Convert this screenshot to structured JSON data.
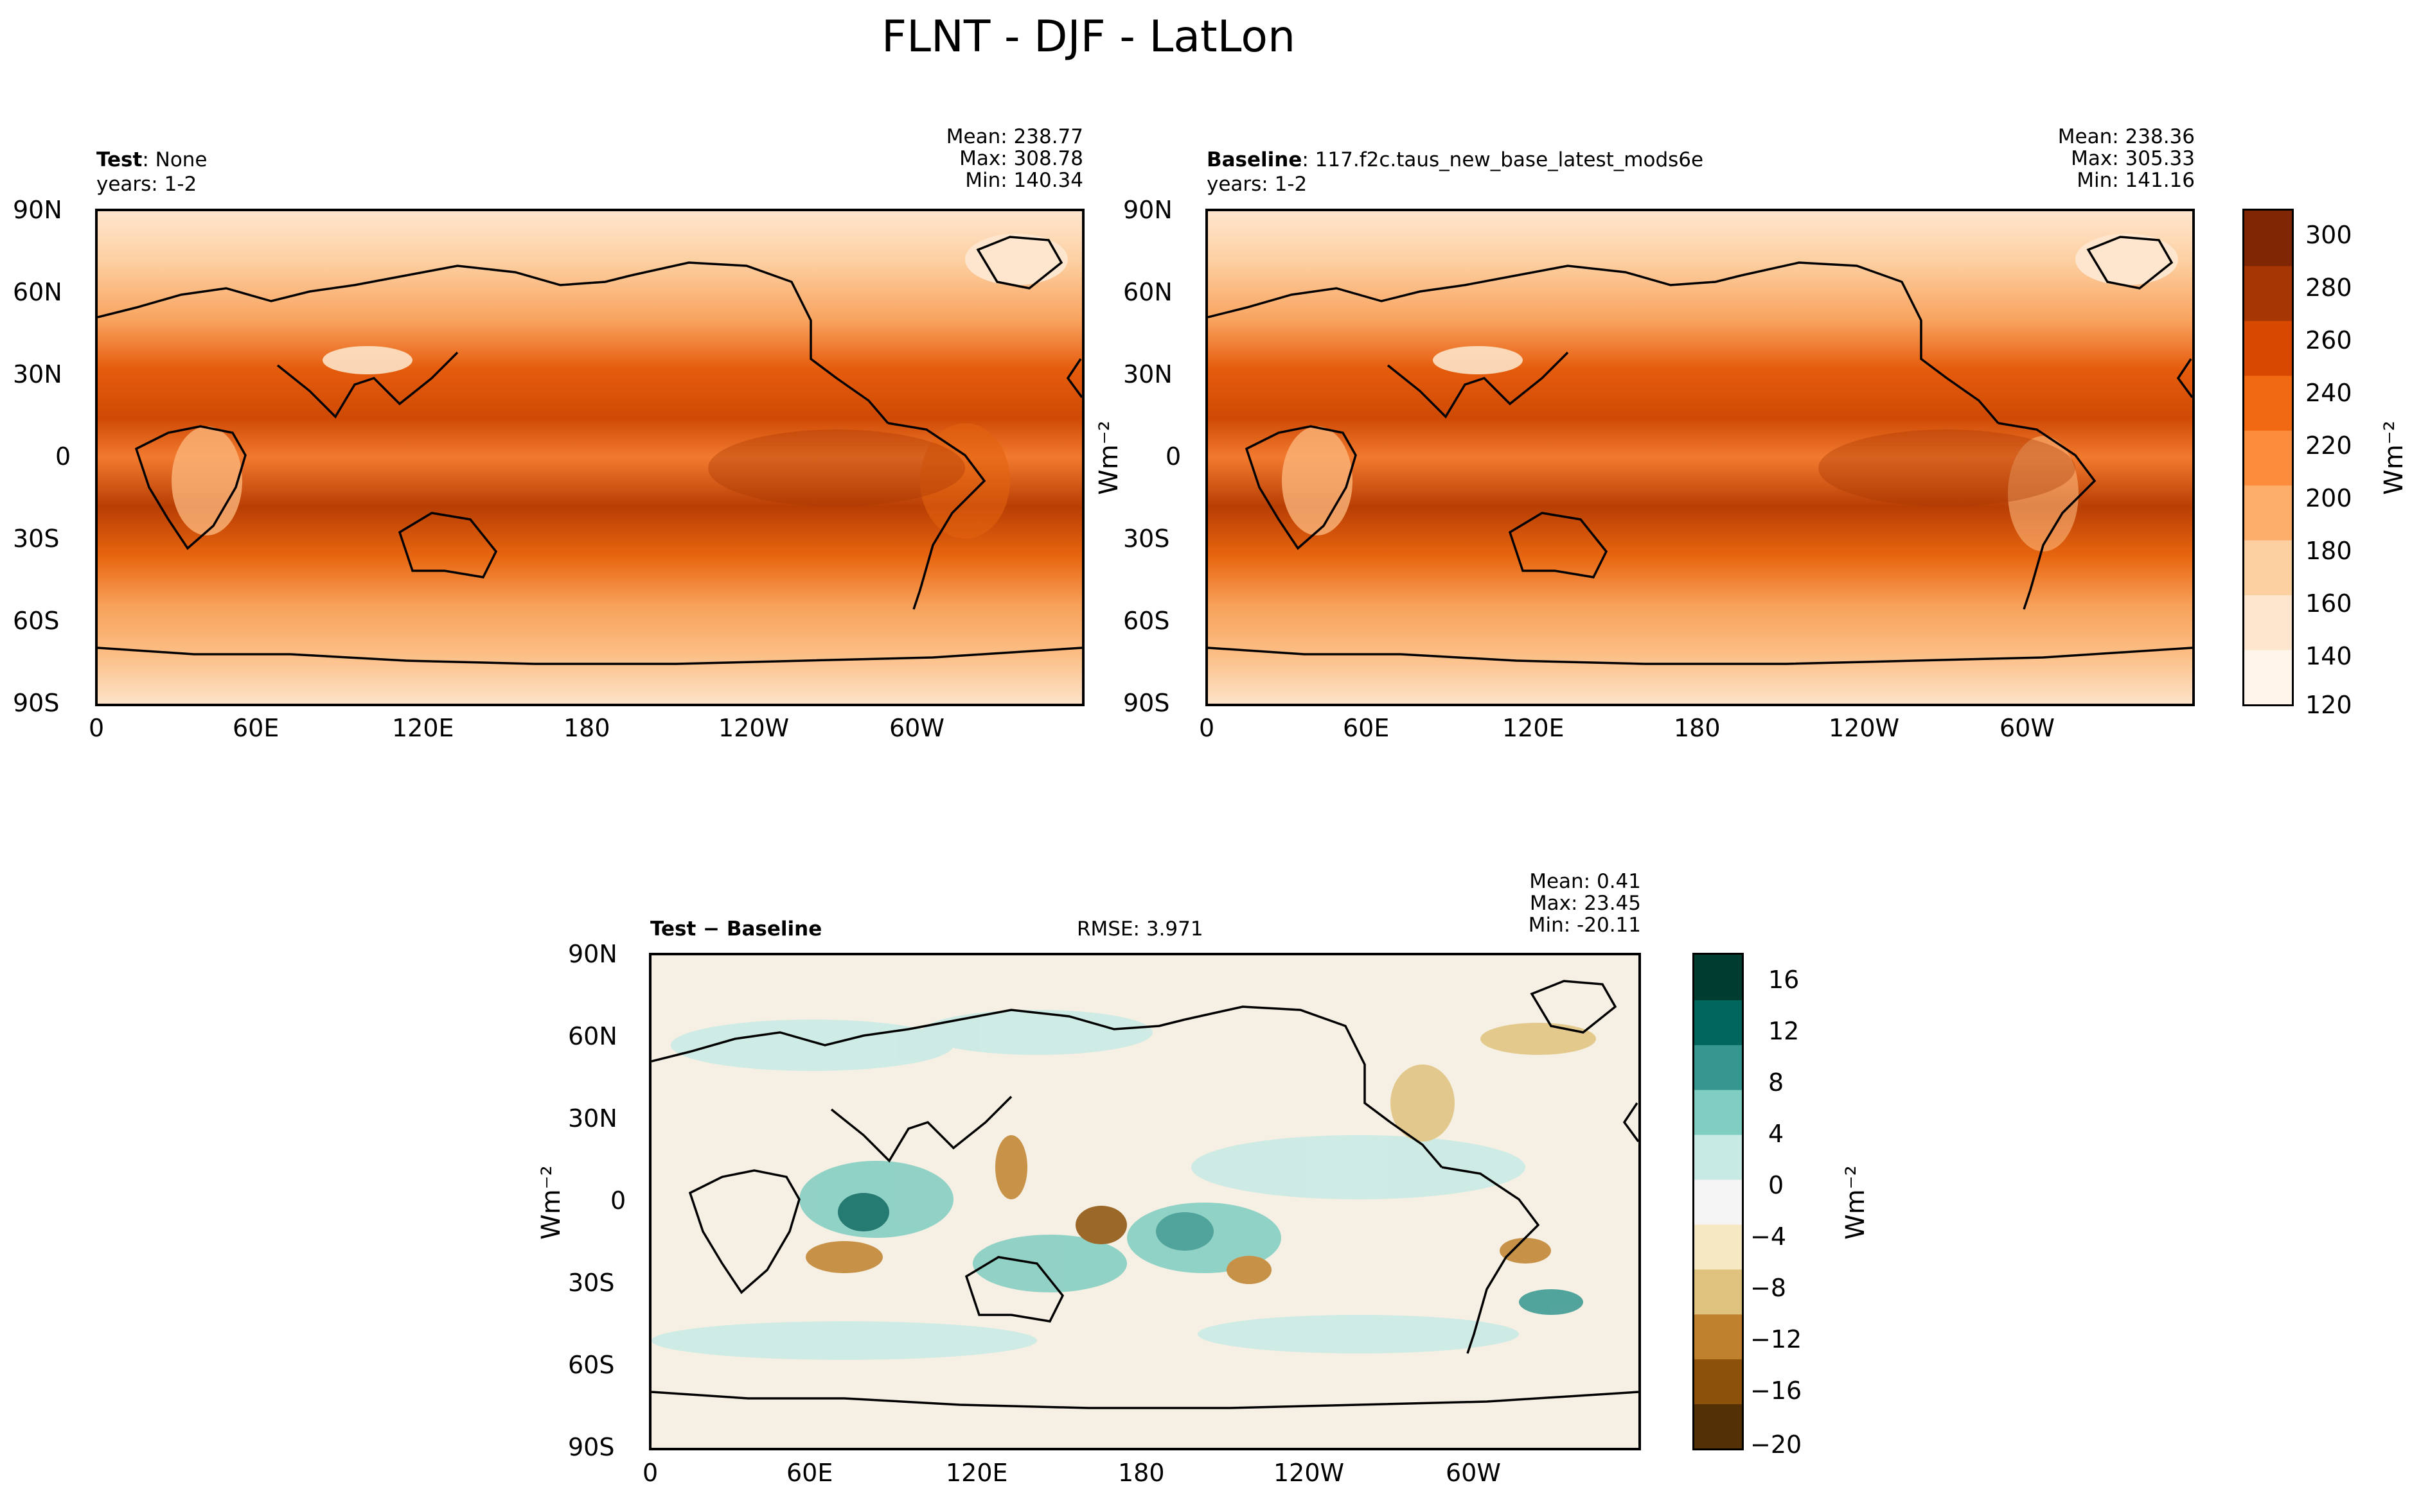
{
  "title": "FLNT - DJF - LatLon",
  "x_tick_labels": [
    "0",
    "60E",
    "120E",
    "180",
    "120W",
    "60W"
  ],
  "y_tick_labels": [
    "90N",
    "60N",
    "30N",
    "0",
    "30S",
    "60S",
    "90S"
  ],
  "colorbar_label": "Wm⁻²",
  "chart_data": [
    {
      "type": "heatmap",
      "name": "test",
      "label_bold": "Test",
      "label_rest": ": None",
      "years": "years: 1-2",
      "mean": "Mean: 238.77",
      "max": "Max: 308.78",
      "min": "Min: 140.34",
      "xlim": [
        0,
        360
      ],
      "ylim": [
        -90,
        90
      ]
    },
    {
      "type": "heatmap",
      "name": "baseline",
      "label_bold": "Baseline",
      "label_rest": ": 117.f2c.taus_new_base_latest_mods6e",
      "years": "years: 1-2",
      "mean": "Mean: 238.36",
      "max": "Max: 305.33",
      "min": "Min: 141.16",
      "ylabel": "Wm⁻²",
      "xlim": [
        0,
        360
      ],
      "ylim": [
        -90,
        90
      ],
      "colorbar": {
        "range": [
          120,
          310
        ],
        "ticks": [
          "300",
          "280",
          "260",
          "240",
          "220",
          "200",
          "180",
          "160",
          "140",
          "120"
        ],
        "colors": [
          "#fff5eb",
          "#fee6ce",
          "#fdd0a2",
          "#fdae6b",
          "#fd8d3c",
          "#f16913",
          "#d94801",
          "#a63603",
          "#7f2704"
        ]
      }
    },
    {
      "type": "heatmap",
      "name": "difference",
      "label_bold": "Test − Baseline",
      "rmse": "RMSE: 3.971",
      "mean": "Mean:  0.41",
      "max": "Max: 23.45",
      "min": "Min: -20.11",
      "ylabel": "Wm⁻²",
      "xlim": [
        0,
        360
      ],
      "ylim": [
        -90,
        90
      ],
      "colorbar": {
        "range": [
          -20,
          18
        ],
        "ticks": [
          "16",
          "12",
          "8",
          "4",
          "0",
          "−4",
          "−8",
          "−12",
          "−16",
          "−20"
        ],
        "colors": [
          "#543005",
          "#8c510a",
          "#bf812d",
          "#dfc27d",
          "#f6e8c3",
          "#f5f5f5",
          "#c7eae5",
          "#80cdc1",
          "#35978f",
          "#01665e",
          "#003c30"
        ]
      }
    }
  ]
}
